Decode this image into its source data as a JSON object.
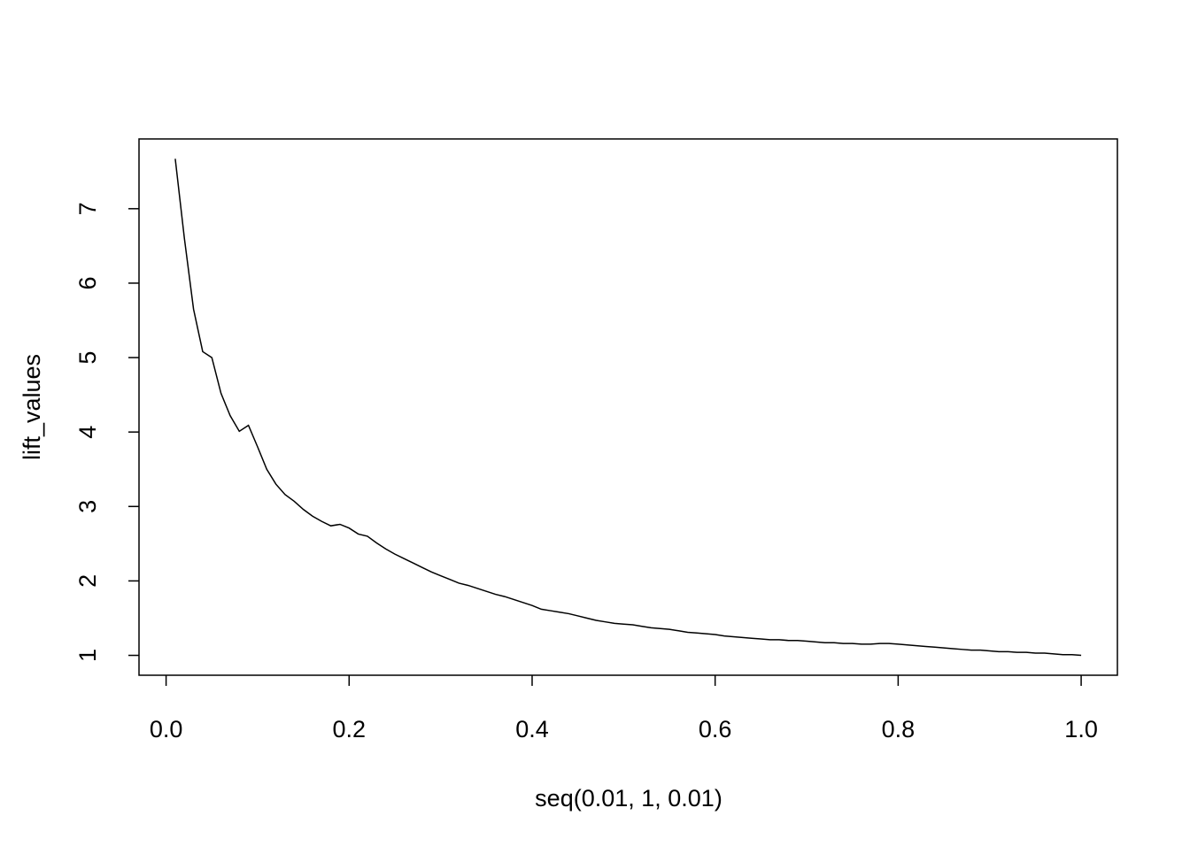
{
  "chart_data": {
    "type": "line",
    "xlabel": "seq(0.01, 1, 0.01)",
    "ylabel": "lift_values",
    "x": [
      0.01,
      0.02,
      0.03,
      0.04,
      0.05,
      0.06,
      0.07,
      0.08,
      0.09,
      0.1,
      0.11,
      0.12,
      0.13,
      0.14,
      0.15,
      0.16,
      0.17,
      0.18,
      0.19,
      0.2,
      0.21,
      0.22,
      0.23,
      0.24,
      0.25,
      0.26,
      0.27,
      0.28,
      0.29,
      0.3,
      0.31,
      0.32,
      0.33,
      0.34,
      0.35,
      0.36,
      0.37,
      0.38,
      0.39,
      0.4,
      0.41,
      0.42,
      0.43,
      0.44,
      0.45,
      0.46,
      0.47,
      0.48,
      0.49,
      0.5,
      0.51,
      0.52,
      0.53,
      0.54,
      0.55,
      0.56,
      0.57,
      0.58,
      0.59,
      0.6,
      0.61,
      0.62,
      0.63,
      0.64,
      0.65,
      0.66,
      0.67,
      0.68,
      0.69,
      0.7,
      0.71,
      0.72,
      0.73,
      0.74,
      0.75,
      0.76,
      0.77,
      0.78,
      0.79,
      0.8,
      0.81,
      0.82,
      0.83,
      0.84,
      0.85,
      0.86,
      0.87,
      0.88,
      0.89,
      0.9,
      0.91,
      0.92,
      0.93,
      0.94,
      0.95,
      0.96,
      0.97,
      0.98,
      0.99,
      1
    ],
    "series": [
      {
        "color": "#000000",
        "values": [
          7.67,
          6.6,
          5.65,
          5.08,
          5.0,
          4.52,
          4.22,
          4.01,
          4.09,
          3.8,
          3.5,
          3.3,
          3.16,
          3.07,
          2.96,
          2.87,
          2.8,
          2.74,
          2.76,
          2.71,
          2.63,
          2.6,
          2.51,
          2.43,
          2.36,
          2.3,
          2.24,
          2.18,
          2.12,
          2.07,
          2.02,
          1.97,
          1.94,
          1.9,
          1.86,
          1.82,
          1.79,
          1.75,
          1.71,
          1.67,
          1.62,
          1.6,
          1.58,
          1.56,
          1.53,
          1.5,
          1.47,
          1.45,
          1.43,
          1.42,
          1.41,
          1.39,
          1.37,
          1.36,
          1.35,
          1.33,
          1.31,
          1.3,
          1.29,
          1.28,
          1.26,
          1.25,
          1.24,
          1.23,
          1.22,
          1.21,
          1.21,
          1.2,
          1.2,
          1.19,
          1.18,
          1.17,
          1.17,
          1.16,
          1.16,
          1.15,
          1.15,
          1.16,
          1.16,
          1.15,
          1.14,
          1.13,
          1.12,
          1.11,
          1.1,
          1.09,
          1.08,
          1.07,
          1.07,
          1.06,
          1.05,
          1.05,
          1.04,
          1.04,
          1.03,
          1.03,
          1.02,
          1.01,
          1.01,
          1.0
        ]
      }
    ],
    "xlim": [
      -0.0296,
      1.0396
    ],
    "ylim": [
      0.733,
      7.937
    ],
    "xticks": [
      {
        "value": 0,
        "label": "0.0"
      },
      0.2,
      0.4,
      0.6,
      0.8,
      {
        "value": 1,
        "label": "1.0"
      }
    ],
    "yticks": [
      1,
      2,
      3,
      4,
      5,
      6,
      7
    ]
  }
}
